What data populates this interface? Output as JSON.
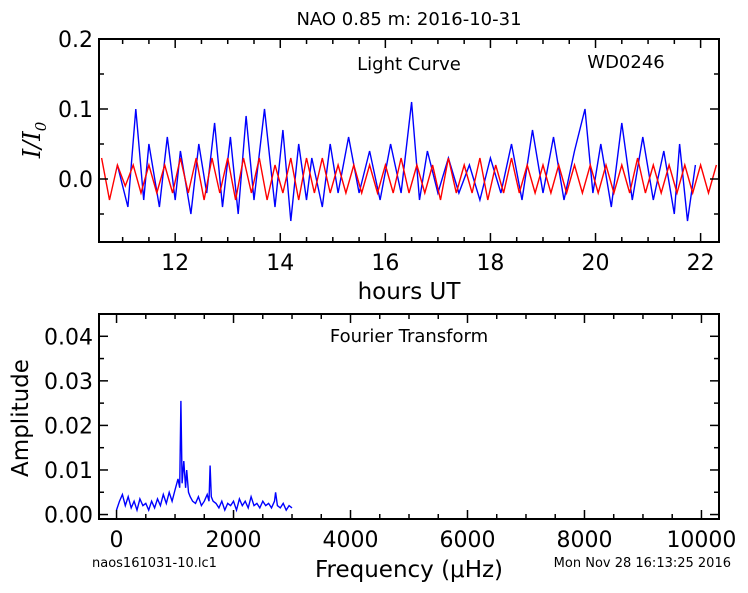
{
  "figure": {
    "title": "NAO 0.85 m:  2016-10-31",
    "footer_left": "naos161031-10.lc1",
    "footer_right": "Mon Nov 28 16:13:25 2016"
  },
  "chart_data": [
    {
      "type": "line",
      "title": "",
      "annotations": [
        "Light Curve",
        "WD0246"
      ],
      "xlabel": "hours UT",
      "ylabel": "I/I0",
      "xlim": [
        10.55,
        22.35
      ],
      "ylim": [
        -0.09,
        0.2
      ],
      "xticks": [
        12,
        14,
        16,
        18,
        20,
        22
      ],
      "yticks": [
        0.0,
        0.1,
        0.2
      ],
      "xtick_labels": [
        "12",
        "14",
        "16",
        "18",
        "20",
        "22"
      ],
      "ytick_labels": [
        "0.0",
        "0.1",
        "0.2"
      ],
      "grid": false,
      "series": [
        {
          "color": "#0000ff",
          "x": [
            10.9,
            11.1,
            11.25,
            11.4,
            11.5,
            11.7,
            11.85,
            12.0,
            12.1,
            12.3,
            12.45,
            12.6,
            12.75,
            12.9,
            13.05,
            13.2,
            13.35,
            13.5,
            13.7,
            13.9,
            14.05,
            14.2,
            14.35,
            14.5,
            14.6,
            14.8,
            14.95,
            15.1,
            15.3,
            15.5,
            15.7,
            15.9,
            16.1,
            16.3,
            16.5,
            16.65,
            16.8,
            17.0,
            17.2,
            17.4,
            17.6,
            17.8,
            18.0,
            18.2,
            18.4,
            18.6,
            18.8,
            19.0,
            19.2,
            19.4,
            19.6,
            19.8,
            19.95,
            20.1,
            20.3,
            20.5,
            20.7,
            20.9,
            21.1,
            21.3,
            21.5,
            21.6,
            21.75,
            21.9
          ],
          "y": [
            0.02,
            -0.04,
            0.1,
            -0.03,
            0.05,
            -0.04,
            0.06,
            -0.03,
            0.04,
            -0.05,
            0.05,
            -0.02,
            0.08,
            -0.04,
            0.06,
            -0.05,
            0.09,
            -0.03,
            0.1,
            -0.04,
            0.07,
            -0.06,
            0.05,
            -0.03,
            0.03,
            -0.04,
            0.05,
            -0.02,
            0.06,
            -0.02,
            0.04,
            -0.03,
            0.05,
            -0.02,
            0.11,
            -0.03,
            0.04,
            -0.02,
            0.03,
            -0.02,
            0.02,
            -0.03,
            0.03,
            -0.02,
            0.05,
            -0.03,
            0.07,
            -0.02,
            0.06,
            -0.03,
            0.04,
            0.1,
            -0.02,
            0.05,
            -0.04,
            0.08,
            -0.03,
            0.06,
            -0.03,
            0.04,
            -0.05,
            0.05,
            -0.06,
            0.02
          ]
        },
        {
          "color": "#ff0000",
          "x": [
            10.6,
            10.75,
            10.9,
            11.05,
            11.2,
            11.35,
            11.5,
            11.65,
            11.8,
            11.95,
            12.1,
            12.25,
            12.4,
            12.55,
            12.7,
            12.85,
            13.0,
            13.15,
            13.3,
            13.45,
            13.6,
            13.75,
            13.9,
            14.05,
            14.2,
            14.35,
            14.5,
            14.65,
            14.8,
            14.95,
            15.1,
            15.25,
            15.4,
            15.55,
            15.7,
            15.85,
            16.0,
            16.15,
            16.3,
            16.45,
            16.6,
            16.75,
            16.9,
            17.05,
            17.2,
            17.35,
            17.5,
            17.65,
            17.8,
            17.95,
            18.1,
            18.25,
            18.4,
            18.55,
            18.7,
            18.85,
            19.0,
            19.15,
            19.3,
            19.45,
            19.6,
            19.75,
            19.9,
            20.05,
            20.2,
            20.35,
            20.5,
            20.65,
            20.8,
            20.95,
            21.1,
            21.25,
            21.4,
            21.55,
            21.7,
            21.85,
            22.0,
            22.15,
            22.3
          ],
          "y": [
            0.03,
            -0.03,
            0.02,
            -0.01,
            0.02,
            -0.02,
            0.02,
            -0.02,
            0.02,
            -0.02,
            0.03,
            -0.02,
            0.03,
            -0.03,
            0.03,
            -0.02,
            0.03,
            -0.03,
            0.03,
            -0.02,
            0.03,
            -0.03,
            0.02,
            -0.02,
            0.03,
            -0.03,
            0.03,
            -0.02,
            0.03,
            -0.02,
            0.02,
            -0.02,
            0.02,
            -0.02,
            0.02,
            -0.02,
            0.02,
            -0.02,
            0.03,
            -0.02,
            0.02,
            -0.02,
            0.02,
            -0.03,
            0.03,
            -0.02,
            0.02,
            -0.02,
            0.03,
            -0.03,
            0.02,
            -0.02,
            0.03,
            -0.02,
            0.02,
            -0.02,
            0.02,
            -0.02,
            0.02,
            -0.02,
            0.02,
            -0.02,
            0.02,
            -0.02,
            0.02,
            -0.02,
            0.02,
            -0.02,
            0.03,
            -0.02,
            0.02,
            -0.02,
            0.02,
            -0.02,
            0.02,
            -0.02,
            0.02,
            -0.02,
            0.02
          ]
        }
      ]
    },
    {
      "type": "line",
      "title": "",
      "annotations": [
        "Fourier Transform"
      ],
      "xlabel": "Frequency (μHz)",
      "ylabel": "Amplitude",
      "xlim": [
        -300,
        10300
      ],
      "ylim": [
        -0.001,
        0.045
      ],
      "xticks": [
        0,
        2000,
        4000,
        6000,
        8000,
        10000
      ],
      "yticks": [
        0.0,
        0.01,
        0.02,
        0.03,
        0.04
      ],
      "xtick_labels": [
        "0",
        "2000",
        "4000",
        "6000",
        "8000",
        "10000"
      ],
      "ytick_labels": [
        "0.00",
        "0.01",
        "0.02",
        "0.03",
        "0.04"
      ],
      "grid": false,
      "series": [
        {
          "color": "#0000ff",
          "x": [
            0,
            50,
            100,
            150,
            200,
            250,
            300,
            350,
            400,
            450,
            500,
            550,
            600,
            650,
            700,
            750,
            800,
            850,
            900,
            950,
            1000,
            1050,
            1080,
            1100,
            1120,
            1150,
            1180,
            1200,
            1230,
            1260,
            1300,
            1350,
            1400,
            1450,
            1500,
            1550,
            1580,
            1600,
            1620,
            1650,
            1700,
            1750,
            1800,
            1850,
            1900,
            1950,
            2000,
            2050,
            2100,
            2150,
            2200,
            2250,
            2300,
            2350,
            2400,
            2450,
            2500,
            2550,
            2600,
            2650,
            2700,
            2720,
            2750,
            2800,
            2850,
            2900,
            2950,
            3000
          ],
          "y": [
            0.001,
            0.003,
            0.0045,
            0.002,
            0.004,
            0.0015,
            0.003,
            0.001,
            0.0035,
            0.002,
            0.0025,
            0.001,
            0.003,
            0.0015,
            0.0035,
            0.002,
            0.0045,
            0.0025,
            0.005,
            0.003,
            0.0055,
            0.008,
            0.006,
            0.0255,
            0.007,
            0.012,
            0.006,
            0.01,
            0.005,
            0.004,
            0.003,
            0.0025,
            0.004,
            0.002,
            0.003,
            0.0045,
            0.003,
            0.011,
            0.004,
            0.003,
            0.0025,
            0.0015,
            0.003,
            0.001,
            0.0025,
            0.002,
            0.003,
            0.001,
            0.0035,
            0.002,
            0.003,
            0.0015,
            0.004,
            0.002,
            0.0025,
            0.0015,
            0.003,
            0.002,
            0.0025,
            0.0015,
            0.003,
            0.005,
            0.002,
            0.0015,
            0.0025,
            0.001,
            0.002,
            0.0015
          ]
        }
      ]
    }
  ]
}
